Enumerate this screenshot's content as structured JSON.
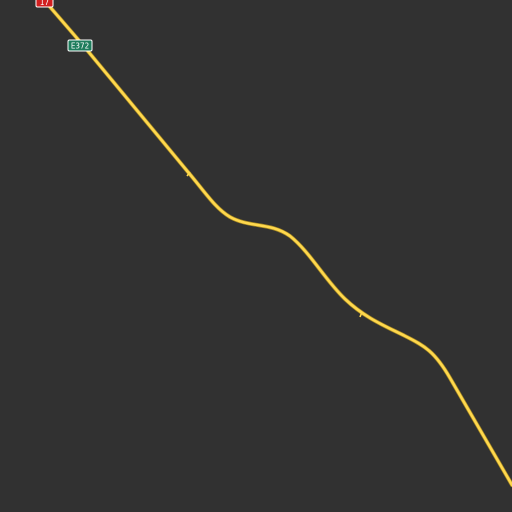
{
  "map": {
    "background_color": "#313131",
    "road_color": "#ffd84d",
    "road_casing_color": "#a88a24",
    "shields": [
      {
        "id": "national",
        "label": "17",
        "fill": "#d21f1f",
        "stroke": "#ffffff",
        "text_color": "#ffffff"
      },
      {
        "id": "european",
        "label": "E372",
        "fill": "#1e7d5c",
        "stroke": "#ffffff",
        "text_color": "#ffffff"
      }
    ]
  }
}
